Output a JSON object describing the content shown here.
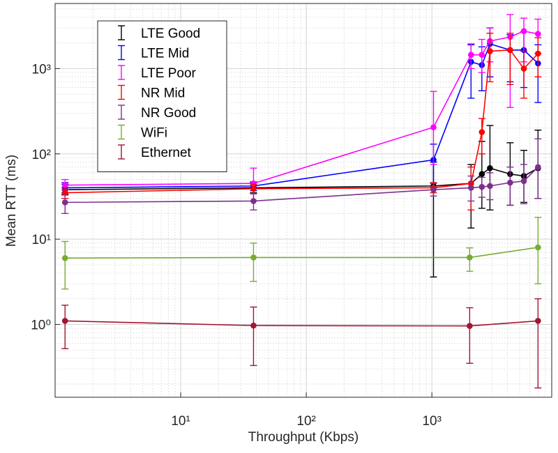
{
  "chart_data": {
    "type": "errorbar",
    "x_label": "Throughput (Kbps)",
    "y_label": "Mean RTT (ms)",
    "log_x": true,
    "log_y": true,
    "grid": true,
    "legend": "upper left",
    "xlim": [
      1,
      9000
    ],
    "ylim": [
      0.14,
      5800
    ],
    "xticks": [
      {
        "value": 10,
        "label": "10¹"
      },
      {
        "value": 100,
        "label": "10²"
      },
      {
        "value": 1000,
        "label": "10³"
      }
    ],
    "yticks": [
      {
        "value": 1,
        "label": "10⁰"
      },
      {
        "value": 10,
        "label": "10¹"
      },
      {
        "value": 100,
        "label": "10²"
      },
      {
        "value": 1000,
        "label": "10³"
      }
    ],
    "series": [
      {
        "name": "LTE Good",
        "color": "#000000",
        "x": [
          1.2,
          38,
          1030,
          2050,
          2500,
          2900,
          4200,
          5400,
          7000
        ],
        "values": [
          38,
          40,
          42,
          45,
          58,
          68,
          58,
          55,
          68
        ],
        "low": [
          33,
          35,
          3.6,
          13.5,
          23,
          22,
          25,
          27,
          30
        ],
        "high": [
          44,
          46,
          80,
          75,
          140,
          215,
          135,
          110,
          190
        ]
      },
      {
        "name": "LTE Mid",
        "color": "#0000ff",
        "x": [
          1.2,
          38,
          1030,
          2050,
          2500,
          2900,
          4200,
          5400,
          7000
        ],
        "values": [
          40,
          42,
          85,
          1200,
          1100,
          1950,
          1650,
          1650,
          1150
        ],
        "low": [
          35,
          37,
          40,
          450,
          550,
          800,
          700,
          600,
          400
        ],
        "high": [
          46,
          47,
          130,
          1900,
          1800,
          3000,
          2500,
          2700,
          1900
        ]
      },
      {
        "name": "LTE Poor",
        "color": "#ff00ff",
        "x": [
          1.2,
          38,
          1030,
          2050,
          2500,
          2900,
          4200,
          5400,
          7000
        ],
        "values": [
          43,
          45,
          205,
          1450,
          1450,
          2100,
          2350,
          2750,
          2550
        ],
        "low": [
          38,
          28,
          75,
          1000,
          900,
          1200,
          350,
          1200,
          1500
        ],
        "high": [
          50,
          68,
          540,
          1950,
          2200,
          3000,
          4300,
          3900,
          3800
        ]
      },
      {
        "name": "NR Mid",
        "color": "#ff0000",
        "x": [
          1.2,
          38,
          1030,
          2050,
          2500,
          2900,
          4200,
          5400,
          7000
        ],
        "values": [
          35,
          39,
          40,
          45,
          180,
          1600,
          1650,
          1000,
          1500
        ],
        "low": [
          30,
          34,
          35,
          22,
          100,
          700,
          650,
          450,
          800
        ],
        "high": [
          40,
          44,
          46,
          70,
          260,
          2600,
          2600,
          1600,
          2300
        ]
      },
      {
        "name": "NR Good",
        "color": "#7e2f8e",
        "x": [
          1.2,
          38,
          1030,
          2050,
          2500,
          2900,
          4200,
          5400,
          7000
        ],
        "values": [
          27,
          28,
          38,
          40,
          41,
          42,
          46,
          48,
          70
        ],
        "low": [
          20,
          22,
          32,
          28,
          31,
          29,
          25,
          26,
          30
        ],
        "high": [
          34,
          34,
          45,
          55,
          53,
          60,
          70,
          75,
          150
        ]
      },
      {
        "name": "WiFi",
        "color": "#77ac30",
        "x": [
          1.2,
          38,
          2000,
          7000
        ],
        "values": [
          6,
          6.1,
          6.1,
          8
        ],
        "low": [
          2.6,
          3.2,
          4.2,
          3
        ],
        "high": [
          9.4,
          9,
          7.9,
          18
        ]
      },
      {
        "name": "Ethernet",
        "color": "#a2142f",
        "x": [
          1.2,
          38,
          2000,
          7000
        ],
        "values": [
          1.1,
          0.97,
          0.96,
          1.1
        ],
        "low": [
          0.52,
          0.33,
          0.35,
          0.18
        ],
        "high": [
          1.68,
          1.6,
          1.57,
          2
        ]
      }
    ]
  }
}
